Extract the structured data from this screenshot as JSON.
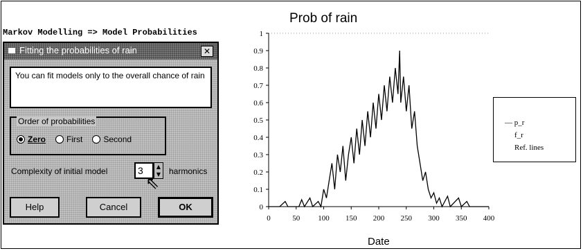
{
  "menu_path": "Markov Modelling => Model Probabilities",
  "dialog": {
    "title": "Fitting the probabilities of rain",
    "close_glyph": "✕",
    "message": "You can fit models only to the overall chance of rain",
    "order_group_label": "Order of probabilities",
    "order_options": [
      {
        "label": "Zero",
        "selected": true
      },
      {
        "label": "First",
        "selected": false
      },
      {
        "label": "Second",
        "selected": false
      }
    ],
    "complexity_label": "Complexity of initial model",
    "complexity_value": "3",
    "complexity_unit": "harmonics",
    "buttons": {
      "help": "Help",
      "cancel": "Cancel",
      "ok": "OK"
    }
  },
  "chart_data": {
    "type": "line",
    "title": "Prob of rain",
    "xlabel": "Date",
    "ylabel": "",
    "xlim": [
      0,
      400
    ],
    "ylim": [
      0,
      1
    ],
    "xticks": [
      "0",
      "50",
      "100",
      "150",
      "200",
      "250",
      "300",
      "350",
      "400"
    ],
    "yticks": [
      "0",
      "0.1",
      "0.2",
      "0.3",
      "0.4",
      "0.5",
      "0.6",
      "0.7",
      "0.8",
      "0.9",
      "1"
    ],
    "grid": false,
    "legend_position": "right",
    "legend": [
      "p_r",
      "f_r",
      "Ref. lines"
    ],
    "series": [
      {
        "name": "p_r",
        "points": [
          [
            0,
            0
          ],
          [
            20,
            0
          ],
          [
            30,
            0.03
          ],
          [
            35,
            0
          ],
          [
            55,
            0
          ],
          [
            60,
            0.04
          ],
          [
            65,
            0
          ],
          [
            75,
            0.05
          ],
          [
            80,
            0
          ],
          [
            90,
            0.03
          ],
          [
            95,
            0
          ],
          [
            100,
            0.1
          ],
          [
            105,
            0.05
          ],
          [
            110,
            0.15
          ],
          [
            115,
            0.25
          ],
          [
            120,
            0.1
          ],
          [
            125,
            0.3
          ],
          [
            130,
            0.2
          ],
          [
            135,
            0.35
          ],
          [
            140,
            0.15
          ],
          [
            145,
            0.3
          ],
          [
            150,
            0.4
          ],
          [
            155,
            0.25
          ],
          [
            160,
            0.45
          ],
          [
            165,
            0.3
          ],
          [
            170,
            0.5
          ],
          [
            175,
            0.35
          ],
          [
            180,
            0.55
          ],
          [
            185,
            0.4
          ],
          [
            190,
            0.6
          ],
          [
            195,
            0.45
          ],
          [
            200,
            0.65
          ],
          [
            205,
            0.5
          ],
          [
            210,
            0.7
          ],
          [
            215,
            0.55
          ],
          [
            220,
            0.75
          ],
          [
            225,
            0.6
          ],
          [
            230,
            0.8
          ],
          [
            235,
            0.65
          ],
          [
            238,
            0.9
          ],
          [
            240,
            0.6
          ],
          [
            245,
            0.75
          ],
          [
            250,
            0.55
          ],
          [
            255,
            0.7
          ],
          [
            260,
            0.45
          ],
          [
            265,
            0.55
          ],
          [
            270,
            0.35
          ],
          [
            275,
            0.25
          ],
          [
            280,
            0.15
          ],
          [
            285,
            0.2
          ],
          [
            290,
            0.1
          ],
          [
            295,
            0.05
          ],
          [
            300,
            0.08
          ],
          [
            305,
            0.02
          ],
          [
            310,
            0.05
          ],
          [
            315,
            0
          ],
          [
            325,
            0.06
          ],
          [
            330,
            0
          ],
          [
            345,
            0.05
          ],
          [
            350,
            0
          ],
          [
            360,
            0.03
          ],
          [
            365,
            0
          ],
          [
            400,
            0
          ]
        ]
      }
    ]
  },
  "colors": {
    "dialog_bg": "#c8c8c8",
    "titlebar": "#4a4a4a",
    "line": "#000000"
  }
}
